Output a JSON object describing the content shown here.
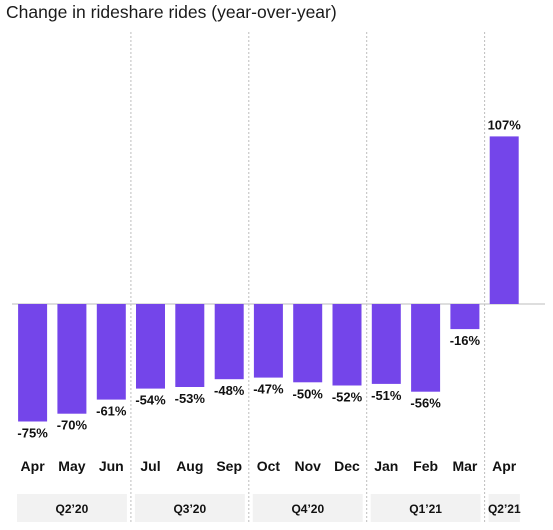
{
  "chart_data": {
    "type": "bar",
    "title": "Change in rideshare rides (year-over-year)",
    "xlabel": "",
    "ylabel": "",
    "categories": [
      "Apr",
      "May",
      "Jun",
      "Jul",
      "Aug",
      "Sep",
      "Oct",
      "Nov",
      "Dec",
      "Jan",
      "Feb",
      "Mar",
      "Apr"
    ],
    "values": [
      -75,
      -70,
      -61,
      -54,
      -53,
      -48,
      -47,
      -50,
      -52,
      -51,
      -56,
      -16,
      107
    ],
    "value_labels": [
      "-75%",
      "-70%",
      "-61%",
      "-54%",
      "-53%",
      "-48%",
      "-47%",
      "-50%",
      "-52%",
      "-51%",
      "-56%",
      "-16%",
      "107%"
    ],
    "groups": [
      {
        "label": "Q2’20",
        "months": 3
      },
      {
        "label": "Q3’20",
        "months": 3
      },
      {
        "label": "Q4’20",
        "months": 3
      },
      {
        "label": "Q1’21",
        "months": 3
      },
      {
        "label": "Q2’21",
        "months": 1
      }
    ],
    "ylim": [
      -80,
      115
    ],
    "grid": false,
    "legend": "none",
    "bar_color": "#7445ea",
    "separator_color": "#bdbdbd",
    "quarter_bg_color": "#f2f2f2"
  }
}
